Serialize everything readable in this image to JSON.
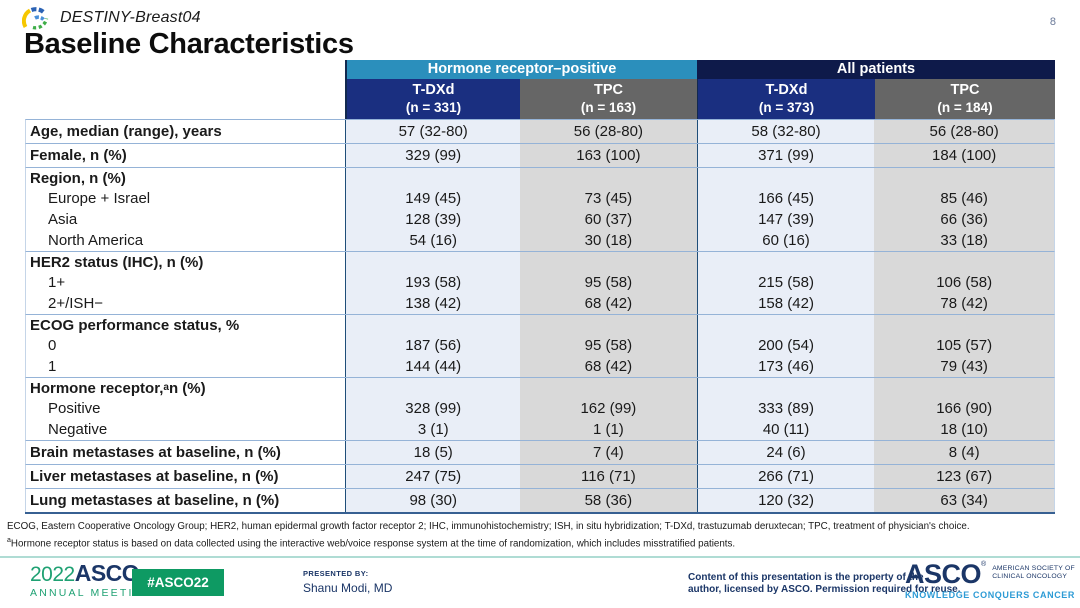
{
  "slide": {
    "study": "DESTINY-Breast04",
    "title": "Baseline Characteristics",
    "page_number": "8"
  },
  "table": {
    "group_headers": [
      {
        "label": "Hormone receptor–positive"
      },
      {
        "label": "All patients"
      }
    ],
    "column_headers": [
      {
        "name": "T-DXd",
        "n": "(n = 331)"
      },
      {
        "name": "TPC",
        "n": "(n = 163)"
      },
      {
        "name": "T-DXd",
        "n": "(n = 373)"
      },
      {
        "name": "TPC",
        "n": "(n = 184)"
      }
    ],
    "rows": [
      {
        "label": "Age, median (range), years",
        "bold": true,
        "sep": true,
        "values": [
          "57 (32-80)",
          "56 (28-80)",
          "58 (32-80)",
          "56 (28-80)"
        ]
      },
      {
        "label": "Female, n (%)",
        "bold": true,
        "sep": true,
        "values": [
          "329 (99)",
          "163 (100)",
          "371 (99)",
          "184 (100)"
        ]
      },
      {
        "label": "Region, n (%)",
        "bold": true,
        "sep": true,
        "values": [
          "",
          "",
          "",
          ""
        ]
      },
      {
        "label": "Europe + Israel",
        "indent": true,
        "values": [
          "149 (45)",
          "73 (45)",
          "166 (45)",
          "85 (46)"
        ]
      },
      {
        "label": "Asia",
        "indent": true,
        "values": [
          "128 (39)",
          "60 (37)",
          "147 (39)",
          "66 (36)"
        ]
      },
      {
        "label": "North America",
        "indent": true,
        "values": [
          "54 (16)",
          "30 (18)",
          "60 (16)",
          "33 (18)"
        ]
      },
      {
        "label": "HER2 status (IHC), n (%)",
        "bold": true,
        "sep": true,
        "values": [
          "",
          "",
          "",
          ""
        ]
      },
      {
        "label": "1+",
        "indent": true,
        "values": [
          "193 (58)",
          "95 (58)",
          "215 (58)",
          "106 (58)"
        ]
      },
      {
        "label": "2+/ISH−",
        "indent": true,
        "values": [
          "138 (42)",
          "68 (42)",
          "158 (42)",
          "78 (42)"
        ]
      },
      {
        "label": "ECOG performance status, %",
        "bold": true,
        "sep": true,
        "values": [
          "",
          "",
          "",
          ""
        ]
      },
      {
        "label": "0",
        "indent": true,
        "values": [
          "187 (56)",
          "95 (58)",
          "200 (54)",
          "105 (57)"
        ]
      },
      {
        "label": "1",
        "indent": true,
        "values": [
          "144 (44)",
          "68 (42)",
          "173 (46)",
          "79 (43)"
        ]
      },
      {
        "label_pre": "Hormone receptor,",
        "sup": "a",
        "label_post": " n (%)",
        "bold": true,
        "sep": true,
        "values": [
          "",
          "",
          "",
          ""
        ]
      },
      {
        "label": "Positive",
        "indent": true,
        "values": [
          "328 (99)",
          "162 (99)",
          "333 (89)",
          "166 (90)"
        ]
      },
      {
        "label": "Negative",
        "indent": true,
        "values": [
          "3 (1)",
          "1 (1)",
          "40 (11)",
          "18 (10)"
        ]
      },
      {
        "label": "Brain metastases at baseline, n (%)",
        "bold": true,
        "sep": true,
        "values": [
          "18 (5)",
          "7 (4)",
          "24 (6)",
          "8 (4)"
        ]
      },
      {
        "label": "Liver metastases at baseline, n (%)",
        "bold": true,
        "sep": true,
        "values": [
          "247 (75)",
          "116 (71)",
          "266 (71)",
          "123 (67)"
        ]
      },
      {
        "label": "Lung metastases at baseline, n (%)",
        "bold": true,
        "sep": true,
        "values": [
          "98 (30)",
          "58 (36)",
          "120 (32)",
          "63 (34)"
        ]
      }
    ]
  },
  "footnotes": {
    "abbreviations": "ECOG, Eastern Cooperative Oncology Group; HER2, human epidermal growth factor receptor 2; IHC, immunohistochemistry; ISH, in situ hybridization; T-DXd, trastuzumab deruxtecan; TPC, treatment of physician's choice.",
    "note_a_sup": "a",
    "note_a": "Hormone receptor status is based on data collected using the interactive web/voice response system at the time of randomization, which includes misstratified patients."
  },
  "footer": {
    "meeting_year": "2022",
    "meeting_org": "ASCO",
    "meeting_reg": "®",
    "meeting_name": "ANNUAL MEETING",
    "hashtag": "#ASCO22",
    "presented_by_label": "PRESENTED BY:",
    "presenter": "Shanu Modi, MD",
    "permission_line1": "Content of this presentation is the property of the",
    "permission_line2": "author, licensed by ASCO. Permission required for reuse.",
    "asco_org": "ASCO",
    "asco_reg": "®",
    "asco_sub1": "AMERICAN SOCIETY OF",
    "asco_sub2": "CLINICAL ONCOLOGY",
    "asco_tagline": "KNOWLEDGE CONQUERS CANCER"
  },
  "colors": {
    "teal_header": "#2B8FBC",
    "navy_header": "#0E1A4A",
    "tdxd_header": "#1A2F80",
    "tpc_header": "#666666",
    "tdxd_col": "#E9EEF7",
    "tpc_col": "#D9D9D9",
    "row_border": "#95B3D7",
    "asco_green": "#0E9A63",
    "asco_navy": "#1B3667",
    "asco_lightblue": "#2D9BD5"
  }
}
